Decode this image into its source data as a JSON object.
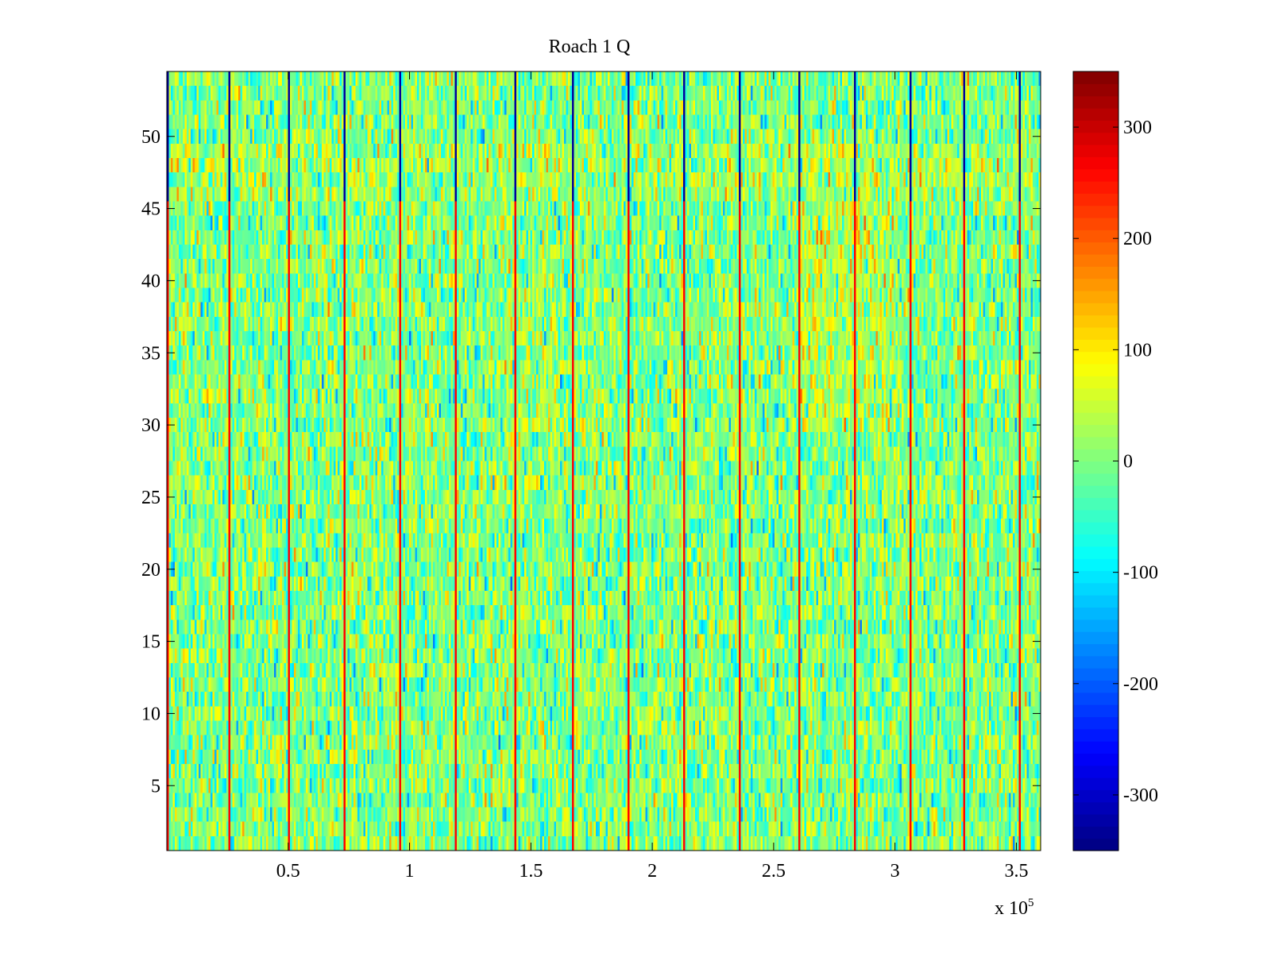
{
  "chart_data": {
    "type": "heatmap",
    "title": "Roach 1 Q",
    "xlabel": "",
    "ylabel": "",
    "x_exponent_label": "x 10",
    "x_exponent_power": "5",
    "xlim": [
      0,
      3.6
    ],
    "ylim": [
      0.5,
      54.5
    ],
    "xticks": [
      0.5,
      1,
      1.5,
      2,
      2.5,
      3,
      3.5
    ],
    "xtick_labels": [
      "0.5",
      "1",
      "1.5",
      "2",
      "2.5",
      "3",
      "3.5"
    ],
    "yticks": [
      5,
      10,
      15,
      20,
      25,
      30,
      35,
      40,
      45,
      50
    ],
    "ytick_labels": [
      "5",
      "10",
      "15",
      "20",
      "25",
      "30",
      "35",
      "40",
      "45",
      "50"
    ],
    "rows": 54,
    "colorbar": {
      "colormap": "jet",
      "clim": [
        -350,
        350
      ],
      "ticks": [
        -300,
        -200,
        -100,
        0,
        100,
        200,
        300
      ],
      "tick_labels": [
        "-300",
        "-200",
        "-100",
        "0",
        "100",
        "200",
        "300"
      ]
    },
    "noise_center": 0,
    "noise_spread": 60,
    "periodic_stripes_x": [
      0.25,
      0.5,
      0.73,
      0.96,
      1.19,
      1.43,
      1.67,
      1.9,
      2.13,
      2.36,
      2.6,
      2.83,
      3.06,
      3.28,
      3.51
    ],
    "stripe_values": {
      "upper_rows": -330,
      "lower_rows": 260,
      "split_row": 46
    },
    "warm_regions": [
      {
        "x": [
          2.6,
          3.0
        ],
        "y": [
          30,
          45
        ],
        "offset": 35
      },
      {
        "x": [
          1.4,
          1.6
        ],
        "y": [
          30,
          42
        ],
        "offset": 25
      },
      {
        "x": [
          0,
          3.6
        ],
        "y": [
          46,
          49
        ],
        "offset": 25
      }
    ]
  }
}
